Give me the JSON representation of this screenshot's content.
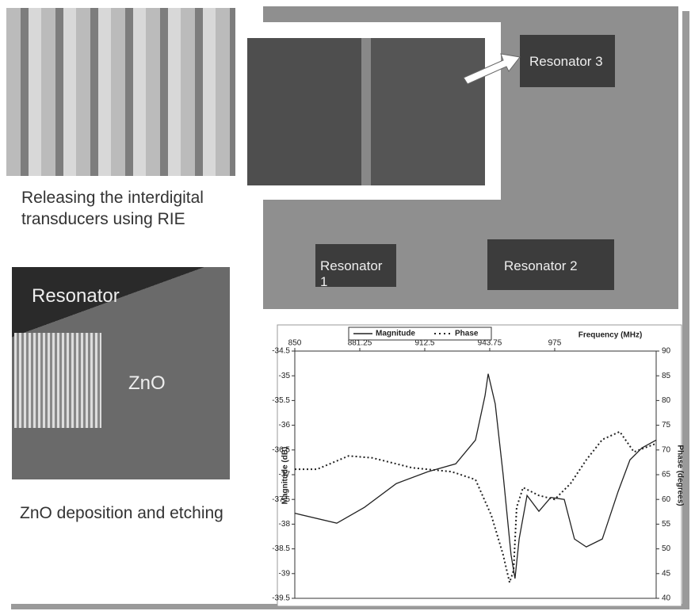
{
  "captions": [
    "Releasing the interdigital transducers using RIE",
    "ZnO deposition and etching"
  ],
  "photo_labels": [
    "Resonator",
    "ZnO",
    "Resonator 3",
    "Resonator 1",
    "Resonator 2"
  ],
  "chart_data": {
    "type": "line",
    "x_label": "Frequency (MHz)",
    "y_label": "Magnitude (dB)",
    "y2_label": "Phase (degrees)",
    "xlim": [
      850,
      1023.8
    ],
    "xticks": [
      850,
      {
        "value": 881.25,
        "label": "881.25"
      },
      912.5,
      943.75,
      975
    ],
    "ylim": [
      -39.5,
      -34.5
    ],
    "yticks": [
      -39.5,
      -39,
      -38.5,
      -38,
      -37.5,
      -37,
      -36.5,
      -36,
      -35.5,
      -35,
      -34.5
    ],
    "y2lim": [
      40,
      90
    ],
    "y2ticks": [
      40,
      45,
      50,
      55,
      60,
      65,
      70,
      75,
      80,
      85,
      90
    ],
    "series": [
      {
        "name": "Magnitude",
        "color": "#222222",
        "style": "solid",
        "x": [
          850,
          870.2,
          883.5,
          898.8,
          914,
          927.4,
          936.9,
          941.5,
          943,
          946.4,
          950.2,
          954,
          955.9,
          957.9,
          961.7,
          967.4,
          973.1,
          979.6,
          984.5,
          990.2,
          997.9,
          1005.5,
          1011.2,
          1016.9,
          1023.8
        ],
        "values": [
          -37.78,
          -37.98,
          -37.66,
          -37.18,
          -36.94,
          -36.78,
          -36.3,
          -35.4,
          -34.96,
          -35.57,
          -37.0,
          -38.62,
          -39.1,
          -38.3,
          -37.42,
          -37.74,
          -37.46,
          -37.5,
          -38.3,
          -38.46,
          -38.3,
          -37.34,
          -36.7,
          -36.46,
          -36.3
        ]
      },
      {
        "name": "Phase",
        "color": "#222222",
        "style": "dotted",
        "axis": "y2",
        "x": [
          850,
          860.7,
          875.9,
          887.3,
          906.4,
          925.5,
          936.9,
          944.5,
          950.2,
          953.3,
          955.2,
          956.7,
          959.8,
          967.4,
          975,
          982.6,
          990.2,
          997.9,
          1006.3,
          1013.1,
          1023.8
        ],
        "values": [
          66.1,
          66.1,
          68.8,
          68.4,
          66.4,
          65.6,
          64.0,
          56.8,
          48.8,
          43.2,
          45.6,
          58.4,
          62.4,
          60.8,
          60.0,
          63.2,
          68.0,
          72.1,
          73.7,
          69.6,
          71.3
        ]
      }
    ]
  }
}
